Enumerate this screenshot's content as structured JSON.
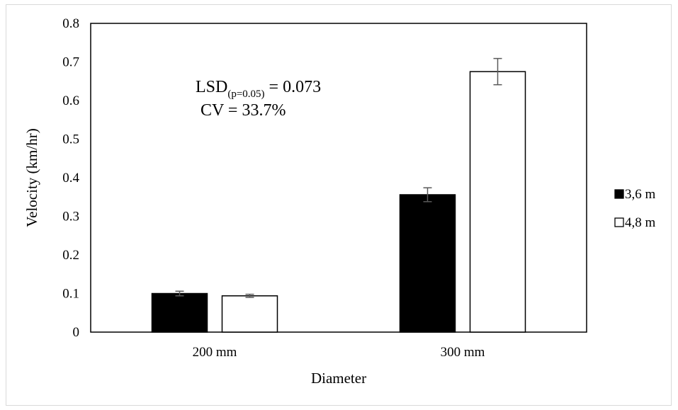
{
  "chart_data": {
    "type": "bar",
    "categories": [
      "200 mm",
      "300 mm"
    ],
    "series": [
      {
        "name": "3,6 m",
        "color": "#000000",
        "values": [
          0.1,
          0.356
        ],
        "errors": [
          0.006,
          0.018
        ]
      },
      {
        "name": "4,8 m",
        "color": "#ffffff",
        "values": [
          0.094,
          0.675
        ],
        "errors": [
          0.004,
          0.034
        ]
      }
    ],
    "xlabel": "Diameter",
    "ylabel": "Velocity (km/hr)",
    "ylim": [
      0,
      0.8
    ],
    "yticks": [
      "0",
      "0.1",
      "0.2",
      "0.3",
      "0.4",
      "0.5",
      "0.6",
      "0.7",
      "0.8"
    ],
    "grid": false,
    "legend": "right",
    "annotations": {
      "lsd_main": "LSD",
      "lsd_sub": "(p=0.05)",
      "lsd_value": " = 0.073",
      "cv": "CV = 33.7%"
    }
  }
}
